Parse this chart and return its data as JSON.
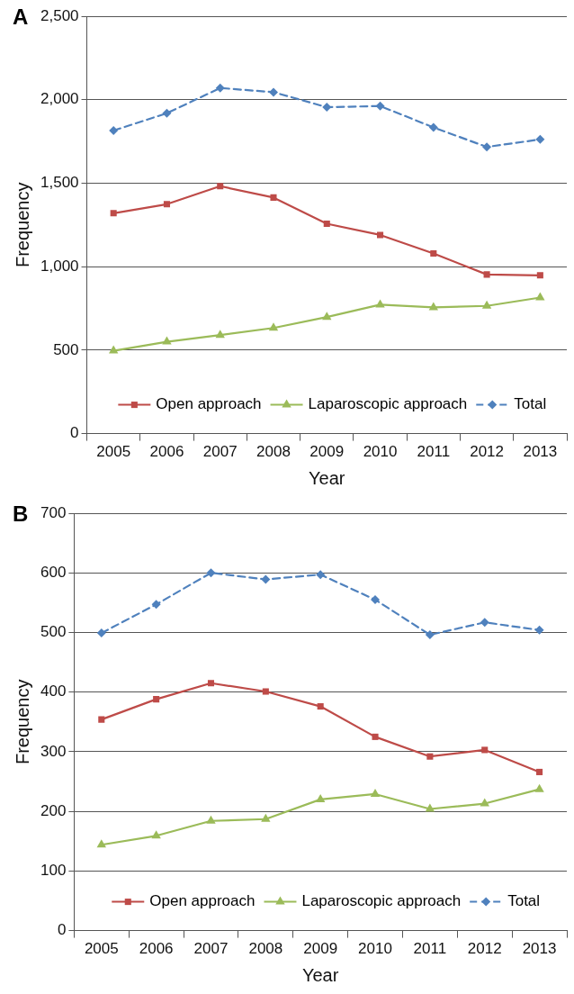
{
  "chart_data": [
    {
      "type": "line",
      "title": "A",
      "xlabel": "Year",
      "ylabel": "Frequency",
      "categories": [
        "2005",
        "2006",
        "2007",
        "2008",
        "2009",
        "2010",
        "2011",
        "2012",
        "2013"
      ],
      "series": [
        {
          "name": "Open approach",
          "color": "#be4b48",
          "marker": "square",
          "values": [
            1320,
            1374,
            1482,
            1414,
            1257,
            1190,
            1079,
            953,
            948
          ]
        },
        {
          "name": "Laparoscopic approach",
          "color": "#9bbb59",
          "marker": "triangle",
          "values": [
            496,
            550,
            590,
            633,
            698,
            772,
            756,
            765,
            815
          ]
        },
        {
          "name": "Total",
          "color": "#4f81bd",
          "marker": "diamond",
          "line_style": "dashed",
          "values": [
            1815,
            1919,
            2070,
            2045,
            1955,
            1962,
            1834,
            1717,
            1762
          ]
        }
      ],
      "ylim": [
        0,
        2500
      ],
      "yticks": [
        0,
        500,
        {
          "value": 1000,
          "label": "1,000"
        },
        {
          "value": 1500,
          "label": "1,500"
        },
        {
          "value": 2000,
          "label": "2,000"
        },
        {
          "value": 2500,
          "label": "2,500"
        }
      ],
      "grid": "y",
      "legend": "bottom"
    },
    {
      "type": "line",
      "title": "B",
      "xlabel": "Year",
      "ylabel": "Frequency",
      "categories": [
        "2005",
        "2006",
        "2007",
        "2008",
        "2009",
        "2010",
        "2011",
        "2012",
        "2013"
      ],
      "series": [
        {
          "name": "Open approach",
          "color": "#be4b48",
          "marker": "square",
          "values": [
            354,
            388,
            415,
            401,
            376,
            325,
            292,
            303,
            266
          ]
        },
        {
          "name": "Laparoscopic approach",
          "color": "#9bbb59",
          "marker": "triangle",
          "values": [
            144,
            159,
            184,
            187,
            220,
            229,
            204,
            213,
            237
          ]
        },
        {
          "name": "Total",
          "color": "#4f81bd",
          "marker": "diamond",
          "line_style": "dashed",
          "values": [
            499,
            547,
            600,
            589,
            597,
            555,
            496,
            517,
            504
          ]
        }
      ],
      "ylim": [
        0,
        700
      ],
      "yticks": [
        0,
        100,
        200,
        300,
        400,
        500,
        600,
        700
      ],
      "grid": "y",
      "legend": "bottom"
    }
  ]
}
